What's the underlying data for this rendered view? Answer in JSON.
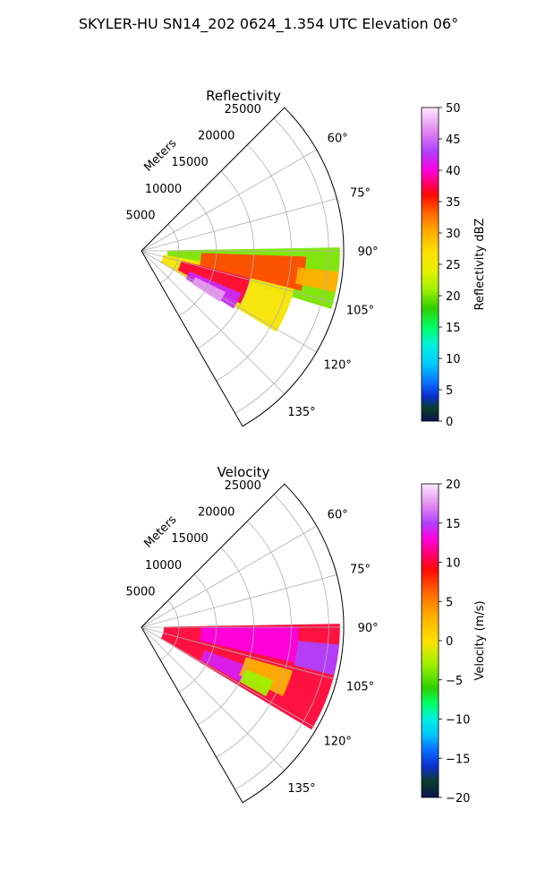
{
  "suptitle": "SKYLER-HU  SN14_202  0624_1.354 UTC Elevation 06°",
  "chart_data": [
    {
      "type": "heatmap",
      "title": "Reflectivity",
      "radial_label": "Meters",
      "radial_ticks": [
        "5000",
        "10000",
        "15000",
        "20000",
        "25000"
      ],
      "range_max": 27000,
      "azimuth_range": [
        45,
        150
      ],
      "azimuth_ticks": [
        "60°",
        "75°",
        "90°",
        "105°",
        "120°",
        "135°"
      ],
      "grid": true,
      "colorbar": {
        "label": "Reflectivity dBZ",
        "range": [
          0,
          50
        ],
        "ticks": [
          "0",
          "5",
          "10",
          "15",
          "20",
          "25",
          "30",
          "35",
          "40",
          "45",
          "50"
        ],
        "stops": [
          {
            "v": 0,
            "c": "#0a1450"
          },
          {
            "v": 2,
            "c": "#0b3d2a"
          },
          {
            "v": 4,
            "c": "#0a2fd0"
          },
          {
            "v": 6,
            "c": "#0a6cff"
          },
          {
            "v": 9,
            "c": "#00c8ff"
          },
          {
            "v": 12,
            "c": "#00f0e0"
          },
          {
            "v": 15,
            "c": "#00ff66"
          },
          {
            "v": 18,
            "c": "#30d000"
          },
          {
            "v": 21,
            "c": "#a0f000"
          },
          {
            "v": 24,
            "c": "#e8f000"
          },
          {
            "v": 27,
            "c": "#ffe000"
          },
          {
            "v": 30,
            "c": "#ffb000"
          },
          {
            "v": 33,
            "c": "#ff6a00"
          },
          {
            "v": 36,
            "c": "#ff0a00"
          },
          {
            "v": 38,
            "c": "#ff0070"
          },
          {
            "v": 40,
            "c": "#ff00e0"
          },
          {
            "v": 43,
            "c": "#b040ff"
          },
          {
            "v": 46,
            "c": "#e080f0"
          },
          {
            "v": 50,
            "c": "#ffe8ff"
          }
        ]
      },
      "echo_regions": [
        {
          "az": [
            89,
            107
          ],
          "r": [
            3500,
            26500
          ],
          "value": 20
        },
        {
          "az": [
            100,
            121
          ],
          "r": [
            3000,
            21000
          ],
          "value": 26
        },
        {
          "az": [
            92,
            104
          ],
          "r": [
            8000,
            22000
          ],
          "value": 34
        },
        {
          "az": [
            104,
            118
          ],
          "r": [
            5500,
            15000
          ],
          "value": 37
        },
        {
          "az": [
            113,
            122
          ],
          "r": [
            7000,
            14500
          ],
          "value": 42
        },
        {
          "az": [
            116,
            123
          ],
          "r": [
            8000,
            12500
          ],
          "value": 47
        },
        {
          "az": [
            96,
            102
          ],
          "r": [
            21000,
            26500
          ],
          "value": 30
        }
      ]
    },
    {
      "type": "heatmap",
      "title": "Velocity",
      "radial_label": "Meters",
      "radial_ticks": [
        "5000",
        "10000",
        "15000",
        "20000",
        "25000"
      ],
      "range_max": 27000,
      "azimuth_range": [
        45,
        150
      ],
      "azimuth_ticks": [
        "60°",
        "75°",
        "90°",
        "105°",
        "120°",
        "135°"
      ],
      "grid": true,
      "colorbar": {
        "label": "Velocity (m/s)",
        "range": [
          -20,
          20
        ],
        "ticks": [
          "−20",
          "−15",
          "−10",
          "−5",
          "0",
          "5",
          "10",
          "15",
          "20"
        ],
        "stops": [
          {
            "v": -20,
            "c": "#0a1450"
          },
          {
            "v": -18,
            "c": "#0b3d2a"
          },
          {
            "v": -16,
            "c": "#0a2fd0"
          },
          {
            "v": -14,
            "c": "#0a6cff"
          },
          {
            "v": -12,
            "c": "#00c8ff"
          },
          {
            "v": -10,
            "c": "#00f0e0"
          },
          {
            "v": -8,
            "c": "#00ff66"
          },
          {
            "v": -6,
            "c": "#30d000"
          },
          {
            "v": -3,
            "c": "#a0f000"
          },
          {
            "v": 0,
            "c": "#ffe000"
          },
          {
            "v": 3,
            "c": "#ffb000"
          },
          {
            "v": 6,
            "c": "#ff6a00"
          },
          {
            "v": 9,
            "c": "#ff0a00"
          },
          {
            "v": 11,
            "c": "#ff0070"
          },
          {
            "v": 13,
            "c": "#ff00e0"
          },
          {
            "v": 15,
            "c": "#b040ff"
          },
          {
            "v": 17,
            "c": "#e080f0"
          },
          {
            "v": 20,
            "c": "#ffe8ff"
          }
        ]
      },
      "echo_regions": [
        {
          "az": [
            89,
            121
          ],
          "r": [
            3000,
            26500
          ],
          "value": 10
        },
        {
          "az": [
            90,
            103
          ],
          "r": [
            8000,
            21000
          ],
          "value": 13
        },
        {
          "az": [
            95,
            104
          ],
          "r": [
            21000,
            26500
          ],
          "value": 15
        },
        {
          "az": [
            110,
            119
          ],
          "r": [
            9000,
            15000
          ],
          "value": 14
        },
        {
          "az": [
            106,
            116
          ],
          "r": [
            14500,
            21000
          ],
          "value": 3
        },
        {
          "az": [
            112,
            119
          ],
          "r": [
            15000,
            19000
          ],
          "value": -3
        }
      ]
    }
  ]
}
